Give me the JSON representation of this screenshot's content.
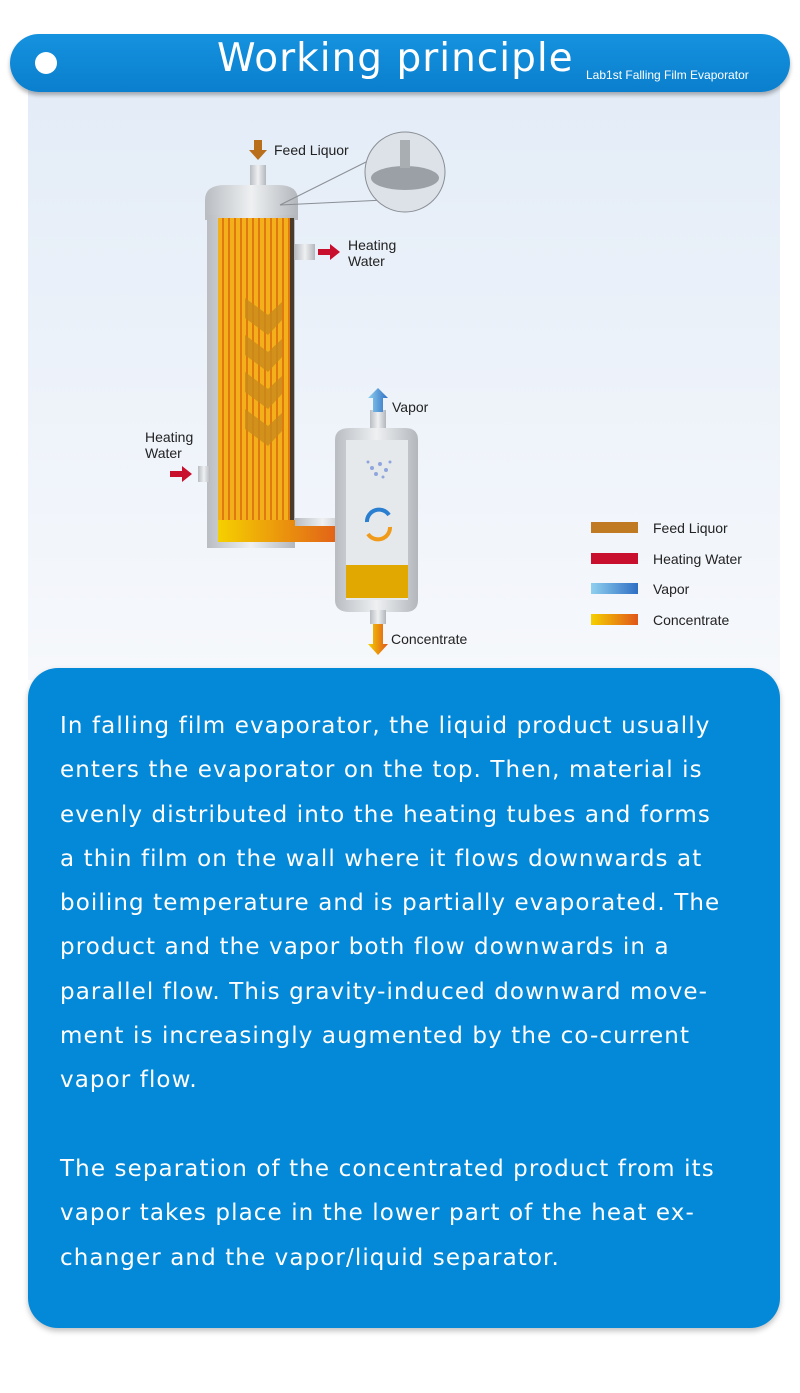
{
  "header": {
    "title": "Working principle",
    "subtitle": "Lab1st Falling Film Evaporator",
    "accent": "#0a85d6"
  },
  "diagram": {
    "labels": {
      "feed_liquor": "Feed Liquor",
      "heating_water_out": [
        "Heating",
        "Water"
      ],
      "heating_water_in": [
        "Heating",
        "Water"
      ],
      "vapor": "Vapor",
      "concentrate": "Concentrate"
    },
    "legend": [
      {
        "label": "Feed Liquor",
        "color": "#c07a22"
      },
      {
        "label": "Heating Water",
        "color": "#c8102e"
      },
      {
        "label": "Vapor",
        "color": "#4f9fd8"
      },
      {
        "label": "Concentrate",
        "color": "#f2c200"
      }
    ]
  },
  "description": {
    "paragraphs": [
      [
        "In falling film evaporator, the liquid product usually",
        "enters the evaporator on the top. Then, material is",
        "evenly distributed into the heating tubes and forms",
        "a thin film on the wall where it flows downwards at",
        "boiling temperature and is partially evaporated. The",
        "product and the vapor both flow downwards in a",
        "parallel flow. This gravity-induced downward move-",
        "ment is increasingly augmented by the co-current",
        "vapor flow."
      ],
      [
        "The separation of the concentrated product from its",
        "vapor takes place in the lower part of the heat ex-",
        "changer and the vapor/liquid separator."
      ]
    ]
  }
}
